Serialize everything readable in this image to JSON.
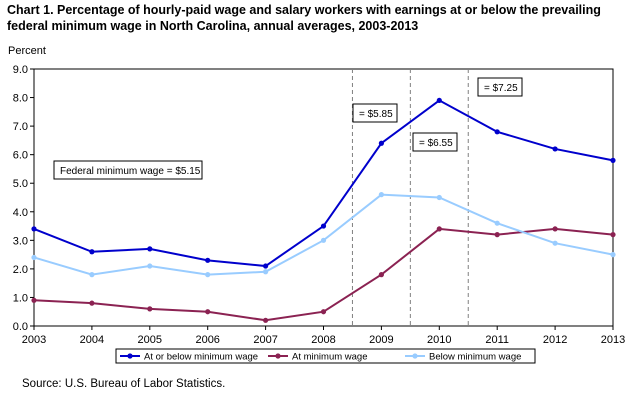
{
  "chart_data": {
    "type": "line",
    "title": "Chart 1. Percentage of hourly-paid wage and salary workers with earnings at or below the prevailing federal minimum wage in North Carolina, annual averages, 2003-2013",
    "ylabel": "Percent",
    "xlabel": "",
    "ylim": [
      0,
      9
    ],
    "y_ticks": [
      "0.0",
      "1.0",
      "2.0",
      "3.0",
      "4.0",
      "5.0",
      "6.0",
      "7.0",
      "8.0",
      "9.0"
    ],
    "categories": [
      "2003",
      "2004",
      "2005",
      "2006",
      "2007",
      "2008",
      "2009",
      "2010",
      "2011",
      "2012",
      "2013"
    ],
    "series": [
      {
        "name": "At or below minimum wage",
        "color": "#0000CC",
        "values": [
          3.4,
          2.6,
          2.7,
          2.3,
          2.1,
          3.5,
          6.4,
          7.9,
          6.8,
          6.2,
          5.8
        ]
      },
      {
        "name": "At minimum wage",
        "color": "#8B2252",
        "values": [
          0.9,
          0.8,
          0.6,
          0.5,
          0.2,
          0.5,
          1.8,
          3.4,
          3.2,
          3.4,
          3.2
        ]
      },
      {
        "name": "Below minimum wage",
        "color": "#99CCFF",
        "values": [
          2.4,
          1.8,
          2.1,
          1.8,
          1.9,
          3.0,
          4.6,
          4.5,
          3.6,
          2.9,
          2.5
        ]
      }
    ],
    "annotations": [
      {
        "text": "Federal  minimum   wage = $5.15"
      },
      {
        "text": "= $5.85"
      },
      {
        "text": "= $6.55"
      },
      {
        "text": "= $7.25"
      }
    ],
    "legend_position": "bottom",
    "grid": false,
    "source": "Source: U.S. Bureau of Labor Statistics."
  }
}
